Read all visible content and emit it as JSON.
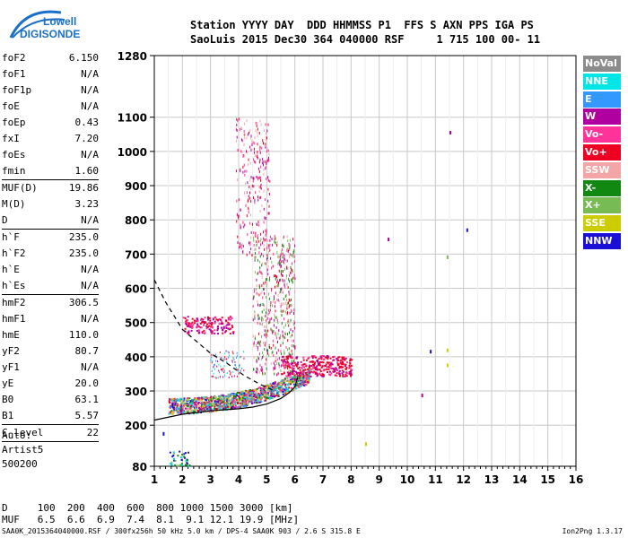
{
  "logo": {
    "line1": "Lowell",
    "line2": "DIGISONDE"
  },
  "header": {
    "line1": "Station YYYY DAY  DDD HHMMSS P1  FFS S AXN PPS IGA PS",
    "line2": "SaoLuis 2015 Dec30 364 040000 RSF     1 715 100 00- 11"
  },
  "params": [
    {
      "name": "foF2",
      "value": "6.150"
    },
    {
      "name": "foF1",
      "value": "N/A"
    },
    {
      "name": "foF1p",
      "value": "N/A"
    },
    {
      "name": "foE",
      "value": "N/A"
    },
    {
      "name": "foEp",
      "value": "0.43"
    },
    {
      "name": "fxI",
      "value": "7.20"
    },
    {
      "name": "foEs",
      "value": "N/A"
    },
    {
      "name": "fmin",
      "value": "1.60"
    },
    {
      "sep": true
    },
    {
      "name": "MUF(D)",
      "value": "19.86"
    },
    {
      "name": "M(D)",
      "value": "3.23"
    },
    {
      "name": "D",
      "value": "N/A"
    },
    {
      "sep": true
    },
    {
      "name": "h`F",
      "value": "235.0"
    },
    {
      "name": "h`F2",
      "value": "235.0"
    },
    {
      "name": "h`E",
      "value": "N/A"
    },
    {
      "name": "h`Es",
      "value": "N/A"
    },
    {
      "sep": true
    },
    {
      "name": "hmF2",
      "value": "306.5"
    },
    {
      "name": "hmF1",
      "value": "N/A"
    },
    {
      "name": "hmE",
      "value": "110.0"
    },
    {
      "name": "yF2",
      "value": "80.7"
    },
    {
      "name": "yF1",
      "value": "N/A"
    },
    {
      "name": "yE",
      "value": "20.0"
    },
    {
      "name": "B0",
      "value": "63.1"
    },
    {
      "name": "B1",
      "value": "5.57"
    },
    {
      "sep": true
    },
    {
      "name": "C-level",
      "value": "22"
    },
    {
      "sep": true
    }
  ],
  "auto": {
    "line1": "Auto:",
    "line2": "Artist5",
    "line3": "500200"
  },
  "legend": [
    {
      "label": "NoVal",
      "color": "#8c8c8c"
    },
    {
      "label": "NNE",
      "color": "#00e5e5"
    },
    {
      "label": "E",
      "color": "#3399ff"
    },
    {
      "label": "W",
      "color": "#b0009f"
    },
    {
      "label": "Vo-",
      "color": "#ff3399"
    },
    {
      "label": "Vo+",
      "color": "#ee0022"
    },
    {
      "label": "SSW",
      "color": "#f4a6a6"
    },
    {
      "label": "X-",
      "color": "#118811"
    },
    {
      "label": "X+",
      "color": "#77bb55"
    },
    {
      "label": "SSE",
      "color": "#cccc00"
    },
    {
      "label": "NNW",
      "color": "#1a0fd6"
    }
  ],
  "muf_table": {
    "line1": "D     100  200  400  600  800 1000 1500 3000 [km]",
    "line2": "MUF   6.5  6.6  6.9  7.4  8.1  9.1 12.1 19.9 [MHz]"
  },
  "footer": {
    "left": "SAA0K_2015364040000.RSF / 300fx256h 50 kHz 5.0 km / DPS-4 SAA0K 903 / 2.6 S 315.8 E",
    "right": "Ion2Png 1.3.17"
  },
  "chart_data": {
    "type": "scatter",
    "xlim": [
      1,
      16
    ],
    "ylim": [
      80,
      1280
    ],
    "x_ticks": [
      1,
      2,
      3,
      4,
      5,
      6,
      7,
      8,
      9,
      10,
      11,
      12,
      13,
      14,
      15,
      16
    ],
    "y_ticks": [
      80,
      200,
      300,
      400,
      500,
      600,
      700,
      800,
      900,
      1000,
      1100,
      1280
    ],
    "grid": true,
    "virtual_height_profile": [
      [
        1.0,
        215
      ],
      [
        2.0,
        232
      ],
      [
        3.0,
        242
      ],
      [
        4.0,
        248
      ],
      [
        4.5,
        253
      ],
      [
        5.0,
        262
      ],
      [
        5.5,
        278
      ],
      [
        5.8,
        295
      ],
      [
        6.0,
        312
      ],
      [
        6.1,
        340
      ]
    ],
    "dashed_profile": [
      [
        1.0,
        625
      ],
      [
        1.4,
        560
      ],
      [
        2.0,
        480
      ],
      [
        3.0,
        410
      ],
      [
        3.6,
        380
      ],
      [
        4.2,
        345
      ],
      [
        4.8,
        318
      ],
      [
        5.3,
        300
      ]
    ],
    "echo_regions": [
      {
        "name": "F-trace",
        "x": [
          1.5,
          6.5
        ],
        "y": [
          240,
          340
        ]
      },
      {
        "name": "F-extension",
        "x": [
          5.5,
          8.0
        ],
        "y": [
          340,
          420
        ]
      },
      {
        "name": "spread-F",
        "x": [
          4.0,
          6.3
        ],
        "y": [
          300,
          760
        ]
      },
      {
        "name": "upper-spread",
        "x": [
          3.8,
          5.0
        ],
        "y": [
          650,
          1100
        ]
      },
      {
        "name": "second-hop",
        "x": [
          2.0,
          3.8
        ],
        "y": [
          460,
          520
        ]
      }
    ],
    "isolated_points": [
      {
        "x": 11.5,
        "y": 1060,
        "series": "W"
      },
      {
        "x": 12.1,
        "y": 775,
        "series": "NNW"
      },
      {
        "x": 9.3,
        "y": 748,
        "series": "W"
      },
      {
        "x": 11.4,
        "y": 696,
        "series": "X+"
      },
      {
        "x": 10.8,
        "y": 420,
        "series": "NNW"
      },
      {
        "x": 11.4,
        "y": 424,
        "series": "SSE"
      },
      {
        "x": 11.4,
        "y": 380,
        "series": "SSE"
      },
      {
        "x": 10.5,
        "y": 292,
        "series": "W"
      },
      {
        "x": 8.5,
        "y": 150,
        "series": "SSE"
      },
      {
        "x": 1.3,
        "y": 180,
        "series": "NNW"
      }
    ]
  }
}
